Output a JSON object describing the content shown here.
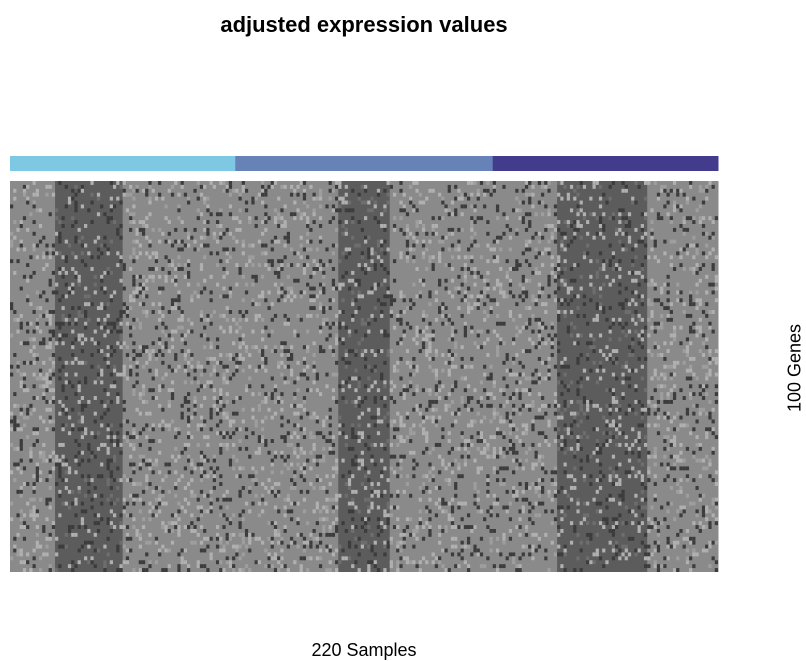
{
  "chart_data": {
    "type": "heatmap",
    "title": "adjusted expression values",
    "xlabel": "220 Samples",
    "ylabel": "100 Genes",
    "n_samples": 220,
    "n_genes": 100,
    "sample_groups": [
      {
        "color": "#7ec8e3",
        "start": 0,
        "end": 70
      },
      {
        "color": "#6782b6",
        "start": 70,
        "end": 150
      },
      {
        "color": "#433c8c",
        "start": 150,
        "end": 220
      }
    ],
    "column_blocks": [
      {
        "start": 0,
        "end": 14,
        "level": "light"
      },
      {
        "start": 14,
        "end": 35,
        "level": "dark"
      },
      {
        "start": 35,
        "end": 102,
        "level": "light"
      },
      {
        "start": 102,
        "end": 118,
        "level": "dark"
      },
      {
        "start": 118,
        "end": 170,
        "level": "light"
      },
      {
        "start": 170,
        "end": 198,
        "level": "dark"
      },
      {
        "start": 198,
        "end": 220,
        "level": "light"
      }
    ],
    "colors": {
      "light": "#8a8a8a",
      "dark": "#5c5c5c",
      "noise_light": "#b0b0b0",
      "noise_dark": "#3c3c3c"
    }
  }
}
